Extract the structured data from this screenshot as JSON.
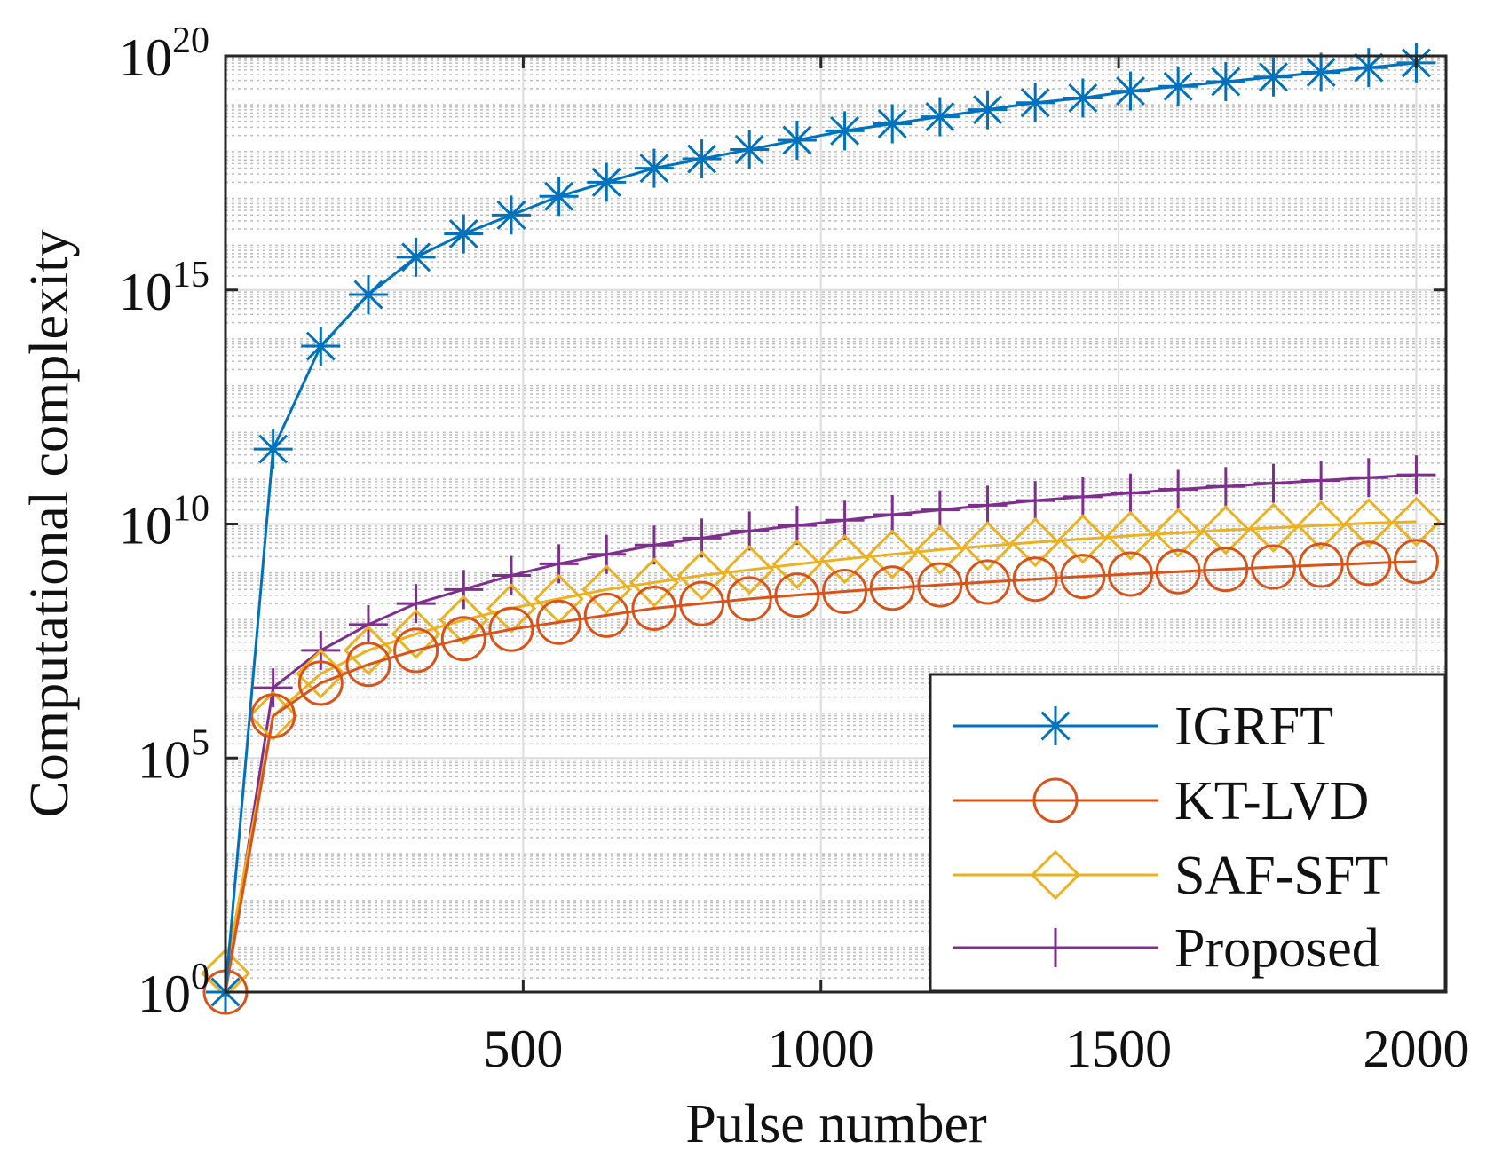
{
  "chart_data": {
    "type": "line",
    "title": "",
    "xlabel": "Pulse number",
    "ylabel": "Computational complexity",
    "xlim": [
      0,
      2050
    ],
    "ylim_exponent": [
      0,
      20
    ],
    "yscale": "log",
    "grid": true,
    "legend_position": "bottom-right",
    "x_ticks": [
      500,
      1000,
      1500,
      2000
    ],
    "y_ticks": [
      {
        "base": "10",
        "exp": "0"
      },
      {
        "base": "10",
        "exp": "5"
      },
      {
        "base": "10",
        "exp": "10"
      },
      {
        "base": "10",
        "exp": "15"
      },
      {
        "base": "10",
        "exp": "20"
      }
    ],
    "x": [
      0,
      80,
      160,
      240,
      320,
      400,
      480,
      560,
      640,
      720,
      800,
      880,
      960,
      1040,
      1120,
      1200,
      1280,
      1360,
      1440,
      1520,
      1600,
      1680,
      1760,
      1840,
      1920,
      2000
    ],
    "series": [
      {
        "name": "IGRFT",
        "color": "#0072BD",
        "marker": "asterisk",
        "log10_values": [
          0,
          11.6,
          13.8,
          14.9,
          15.7,
          16.2,
          16.6,
          17.0,
          17.3,
          17.6,
          17.8,
          18.0,
          18.2,
          18.4,
          18.55,
          18.7,
          18.85,
          19.0,
          19.1,
          19.25,
          19.35,
          19.45,
          19.55,
          19.65,
          19.75,
          19.85
        ]
      },
      {
        "name": "KT-LVD",
        "color": "#D95319",
        "marker": "circle",
        "log10_values": [
          0,
          5.9,
          6.6,
          7.0,
          7.3,
          7.55,
          7.75,
          7.9,
          8.05,
          8.2,
          8.3,
          8.4,
          8.48,
          8.56,
          8.63,
          8.7,
          8.76,
          8.82,
          8.88,
          8.93,
          8.98,
          9.03,
          9.08,
          9.12,
          9.16,
          9.2
        ]
      },
      {
        "name": "SAF-SFT",
        "color": "#EDB120",
        "marker": "diamond",
        "log10_values": [
          0.4,
          5.9,
          6.8,
          7.3,
          7.65,
          7.95,
          8.2,
          8.4,
          8.6,
          8.75,
          8.9,
          9.02,
          9.14,
          9.25,
          9.35,
          9.45,
          9.53,
          9.61,
          9.68,
          9.75,
          9.81,
          9.87,
          9.92,
          9.97,
          10.02,
          10.05
        ]
      },
      {
        "name": "Proposed",
        "color": "#7E2F8E",
        "marker": "plus",
        "log10_values": [
          0,
          6.5,
          7.3,
          7.85,
          8.3,
          8.6,
          8.9,
          9.15,
          9.35,
          9.55,
          9.7,
          9.85,
          9.97,
          10.08,
          10.2,
          10.3,
          10.4,
          10.5,
          10.58,
          10.66,
          10.74,
          10.8,
          10.87,
          10.93,
          10.99,
          11.05
        ]
      }
    ]
  }
}
